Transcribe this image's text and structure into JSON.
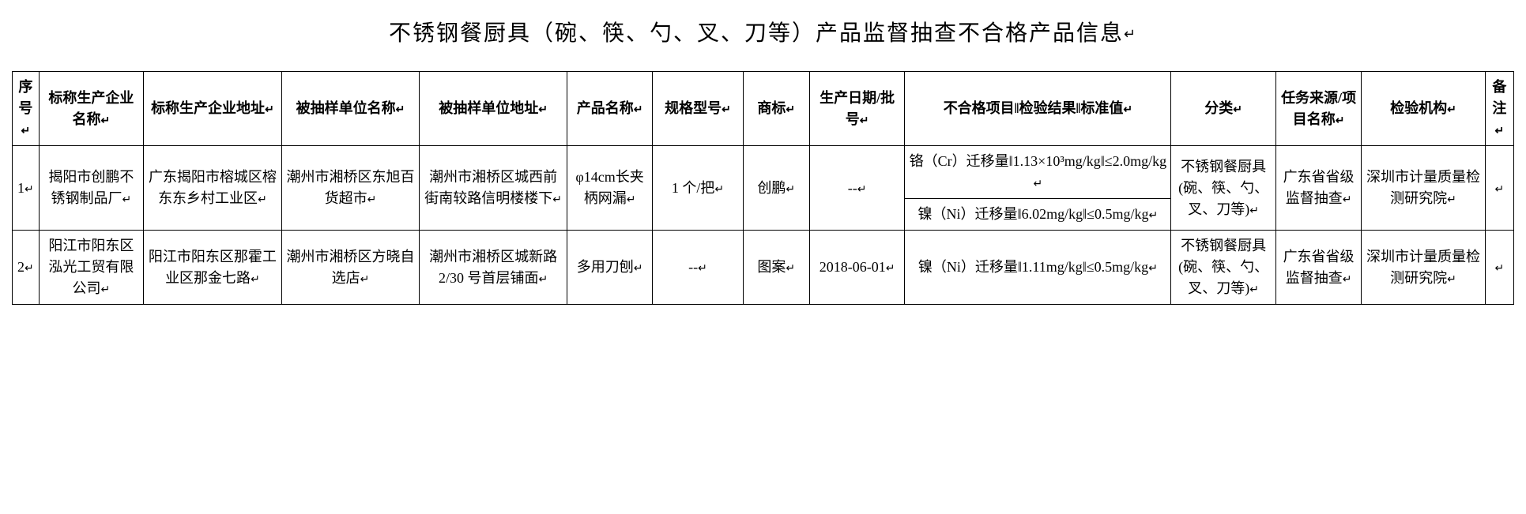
{
  "title": "不锈钢餐厨具（碗、筷、勺、叉、刀等）产品监督抽查不合格产品信息",
  "headers": {
    "seq": "序号",
    "enterprise": "标称生产企业名称",
    "ent_addr": "标称生产企业地址",
    "sampled_name": "被抽样单位名称",
    "sampled_addr": "被抽样单位地址",
    "product_name": "产品名称",
    "spec": "规格型号",
    "brand": "商标",
    "date": "生产日期/批号",
    "fail": "不合格项目‖检验结果‖标准值",
    "category": "分类",
    "task": "任务来源/项目名称",
    "org": "检验机构",
    "note": "备注"
  },
  "rows": [
    {
      "seq": "1",
      "enterprise": "揭阳市创鹏不锈钢制品厂",
      "ent_addr": "广东揭阳市榕城区榕东东乡村工业区",
      "sampled_name": "潮州市湘桥区东旭百货超市",
      "sampled_addr": "潮州市湘桥区城西前街南较路信明楼楼下",
      "product_name": "φ14cm长夹柄网漏",
      "spec": "1 个/把",
      "brand": "创鹏",
      "date": "--",
      "fail_a": "铬（Cr）迁移量‖1.13×10³mg/kg‖≤2.0mg/kg",
      "fail_b": "镍（Ni）迁移量‖6.02mg/kg‖≤0.5mg/kg",
      "category": "不锈钢餐厨具(碗、筷、勺、叉、刀等)",
      "task": "广东省省级监督抽查",
      "org": "深圳市计量质量检测研究院",
      "note": ""
    },
    {
      "seq": "2",
      "enterprise": "阳江市阳东区泓光工贸有限公司",
      "ent_addr": "阳江市阳东区那霍工业区那金七路",
      "sampled_name": "潮州市湘桥区方晓自选店",
      "sampled_addr": "潮州市湘桥区城新路 2/30 号首层铺面",
      "product_name": "多用刀刨",
      "spec": "--",
      "brand": "图案",
      "date": "2018-06-01",
      "fail": "镍（Ni）迁移量‖1.11mg/kg‖≤0.5mg/kg",
      "category": "不锈钢餐厨具(碗、筷、勺、叉、刀等)",
      "task": "广东省省级监督抽查",
      "org": "深圳市计量质量检测研究院",
      "note": ""
    }
  ],
  "colors": {
    "bg": "#ffffff",
    "fg": "#000000",
    "border": "#000000"
  },
  "return_mark": "↵"
}
